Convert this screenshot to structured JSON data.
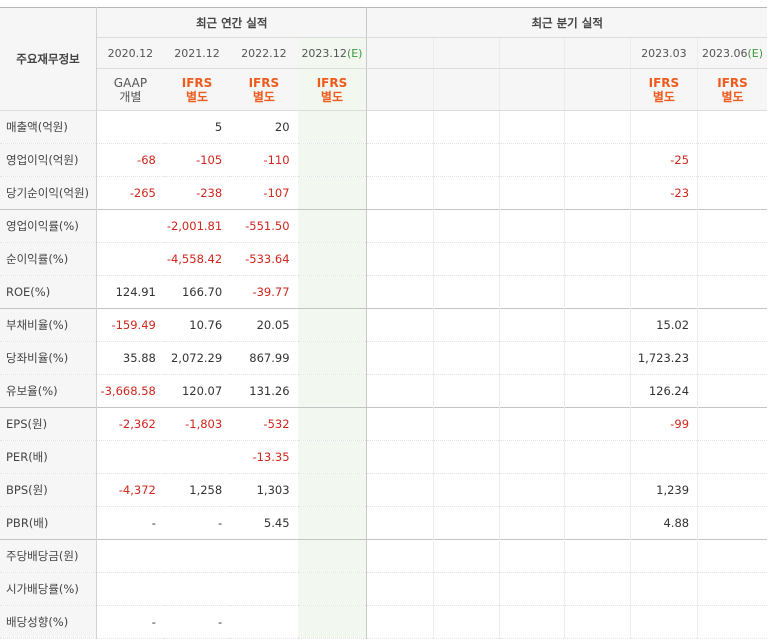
{
  "header": {
    "row_label": "주요재무정보",
    "annual_group": "최근 연간 실적",
    "quarter_group": "최근 분기 실적",
    "annual_periods": [
      "2020.12",
      "2021.12",
      "2022.12",
      "2023.12"
    ],
    "annual_estimate_suffix": "(E)",
    "quarter_periods": [
      "",
      "",
      "",
      "",
      "2023.03",
      "2023.06"
    ],
    "quarter_estimate_suffix": "(E)",
    "annual_accounting": [
      {
        "std": "GAAP",
        "type": "개별",
        "style": "gaap"
      },
      {
        "std": "IFRS",
        "type": "별도",
        "style": "ifrs"
      },
      {
        "std": "IFRS",
        "type": "별도",
        "style": "ifrs"
      },
      {
        "std": "IFRS",
        "type": "별도",
        "style": "ifrs"
      }
    ],
    "quarter_accounting": [
      {
        "std": "",
        "type": ""
      },
      {
        "std": "",
        "type": ""
      },
      {
        "std": "",
        "type": ""
      },
      {
        "std": "",
        "type": ""
      },
      {
        "std": "IFRS",
        "type": "별도"
      },
      {
        "std": "IFRS",
        "type": "별도"
      }
    ]
  },
  "rows": [
    {
      "label": "매출액(억원)",
      "annual": [
        "",
        "5",
        "20",
        ""
      ],
      "quarter": [
        "",
        "",
        "",
        "",
        "",
        ""
      ],
      "group_start": false
    },
    {
      "label": "영업이익(억원)",
      "annual": [
        "-68",
        "-105",
        "-110",
        ""
      ],
      "quarter": [
        "",
        "",
        "",
        "",
        "-25",
        ""
      ],
      "group_start": false
    },
    {
      "label": "당기순이익(억원)",
      "annual": [
        "-265",
        "-238",
        "-107",
        ""
      ],
      "quarter": [
        "",
        "",
        "",
        "",
        "-23",
        ""
      ],
      "group_start": false
    },
    {
      "label": "영업이익률(%)",
      "annual": [
        "",
        "-2,001.81",
        "-551.50",
        ""
      ],
      "quarter": [
        "",
        "",
        "",
        "",
        "",
        ""
      ],
      "group_start": true
    },
    {
      "label": "순이익률(%)",
      "annual": [
        "",
        "-4,558.42",
        "-533.64",
        ""
      ],
      "quarter": [
        "",
        "",
        "",
        "",
        "",
        ""
      ],
      "group_start": false
    },
    {
      "label": "ROE(%)",
      "annual": [
        "124.91",
        "166.70",
        "-39.77",
        ""
      ],
      "quarter": [
        "",
        "",
        "",
        "",
        "",
        ""
      ],
      "group_start": false
    },
    {
      "label": "부채비율(%)",
      "annual": [
        "-159.49",
        "10.76",
        "20.05",
        ""
      ],
      "quarter": [
        "",
        "",
        "",
        "",
        "15.02",
        ""
      ],
      "group_start": true
    },
    {
      "label": "당좌비율(%)",
      "annual": [
        "35.88",
        "2,072.29",
        "867.99",
        ""
      ],
      "quarter": [
        "",
        "",
        "",
        "",
        "1,723.23",
        ""
      ],
      "group_start": false
    },
    {
      "label": "유보율(%)",
      "annual": [
        "-3,668.58",
        "120.07",
        "131.26",
        ""
      ],
      "quarter": [
        "",
        "",
        "",
        "",
        "126.24",
        ""
      ],
      "group_start": false
    },
    {
      "label": "EPS(원)",
      "annual": [
        "-2,362",
        "-1,803",
        "-532",
        ""
      ],
      "quarter": [
        "",
        "",
        "",
        "",
        "-99",
        ""
      ],
      "group_start": true
    },
    {
      "label": "PER(배)",
      "annual": [
        "",
        "",
        "-13.35",
        ""
      ],
      "quarter": [
        "",
        "",
        "",
        "",
        "",
        ""
      ],
      "group_start": false
    },
    {
      "label": "BPS(원)",
      "annual": [
        "-4,372",
        "1,258",
        "1,303",
        ""
      ],
      "quarter": [
        "",
        "",
        "",
        "",
        "1,239",
        ""
      ],
      "group_start": false
    },
    {
      "label": "PBR(배)",
      "annual": [
        "-",
        "-",
        "5.45",
        ""
      ],
      "quarter": [
        "",
        "",
        "",
        "",
        "4.88",
        ""
      ],
      "group_start": false
    },
    {
      "label": "주당배당금(원)",
      "annual": [
        "",
        "",
        "",
        ""
      ],
      "quarter": [
        "",
        "",
        "",
        "",
        "",
        ""
      ],
      "group_start": true
    },
    {
      "label": "시가배당률(%)",
      "annual": [
        "",
        "",
        "",
        ""
      ],
      "quarter": [
        "",
        "",
        "",
        "",
        "",
        ""
      ],
      "group_start": false
    },
    {
      "label": "배당성향(%)",
      "annual": [
        "-",
        "-",
        "",
        ""
      ],
      "quarter": [
        "",
        "",
        "",
        "",
        "",
        ""
      ],
      "group_start": false
    }
  ],
  "colors": {
    "negative": "#d0261c",
    "ifrs": "#ef5b1d",
    "estimate_bg": "#f2f8ef",
    "estimate_mark": "#3a9a3a"
  }
}
